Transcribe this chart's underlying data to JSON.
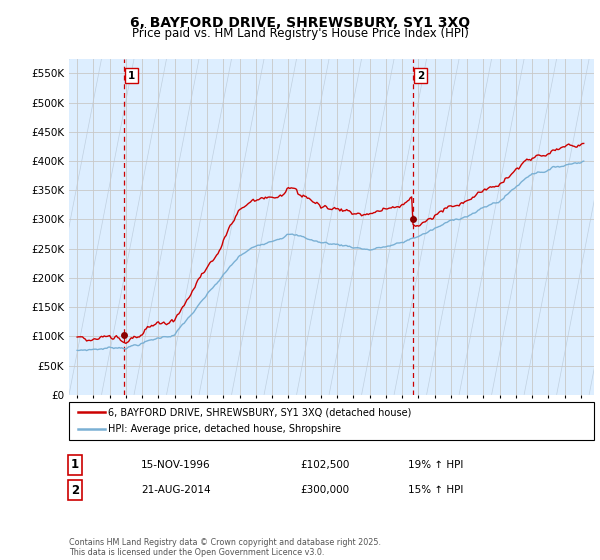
{
  "title": "6, BAYFORD DRIVE, SHREWSBURY, SY1 3XQ",
  "subtitle": "Price paid vs. HM Land Registry's House Price Index (HPI)",
  "ylim": [
    0,
    575000
  ],
  "yticks": [
    0,
    50000,
    100000,
    150000,
    200000,
    250000,
    300000,
    350000,
    400000,
    450000,
    500000,
    550000
  ],
  "ytick_labels": [
    "£0",
    "£50K",
    "£100K",
    "£150K",
    "£200K",
    "£250K",
    "£300K",
    "£350K",
    "£400K",
    "£450K",
    "£500K",
    "£550K"
  ],
  "sale_color": "#cc0000",
  "hpi_color": "#7ab0d4",
  "marker_color": "#8b0000",
  "vline_color": "#cc0000",
  "grid_color": "#c8c8c8",
  "background_color": "#ffffff",
  "plot_bg_color": "#ddeeff",
  "hatch_color": "#c0d0e0",
  "legend_label_sale": "6, BAYFORD DRIVE, SHREWSBURY, SY1 3XQ (detached house)",
  "legend_label_hpi": "HPI: Average price, detached house, Shropshire",
  "annotation1_label": "1",
  "annotation1_date": "15-NOV-1996",
  "annotation1_price": "£102,500",
  "annotation1_hpi": "19% ↑ HPI",
  "annotation2_label": "2",
  "annotation2_date": "21-AUG-2014",
  "annotation2_price": "£300,000",
  "annotation2_hpi": "15% ↑ HPI",
  "footnote": "Contains HM Land Registry data © Crown copyright and database right 2025.\nThis data is licensed under the Open Government Licence v3.0.",
  "sale1_x": 1996.88,
  "sale1_y": 102500,
  "sale2_x": 2014.64,
  "sale2_y": 300000,
  "xmin": 1993.5,
  "xmax": 2025.8,
  "xticks": [
    1994,
    1995,
    1996,
    1997,
    1998,
    1999,
    2000,
    2001,
    2002,
    2003,
    2004,
    2005,
    2006,
    2007,
    2008,
    2009,
    2010,
    2011,
    2012,
    2013,
    2014,
    2015,
    2016,
    2017,
    2018,
    2019,
    2020,
    2021,
    2022,
    2023,
    2024,
    2025
  ]
}
